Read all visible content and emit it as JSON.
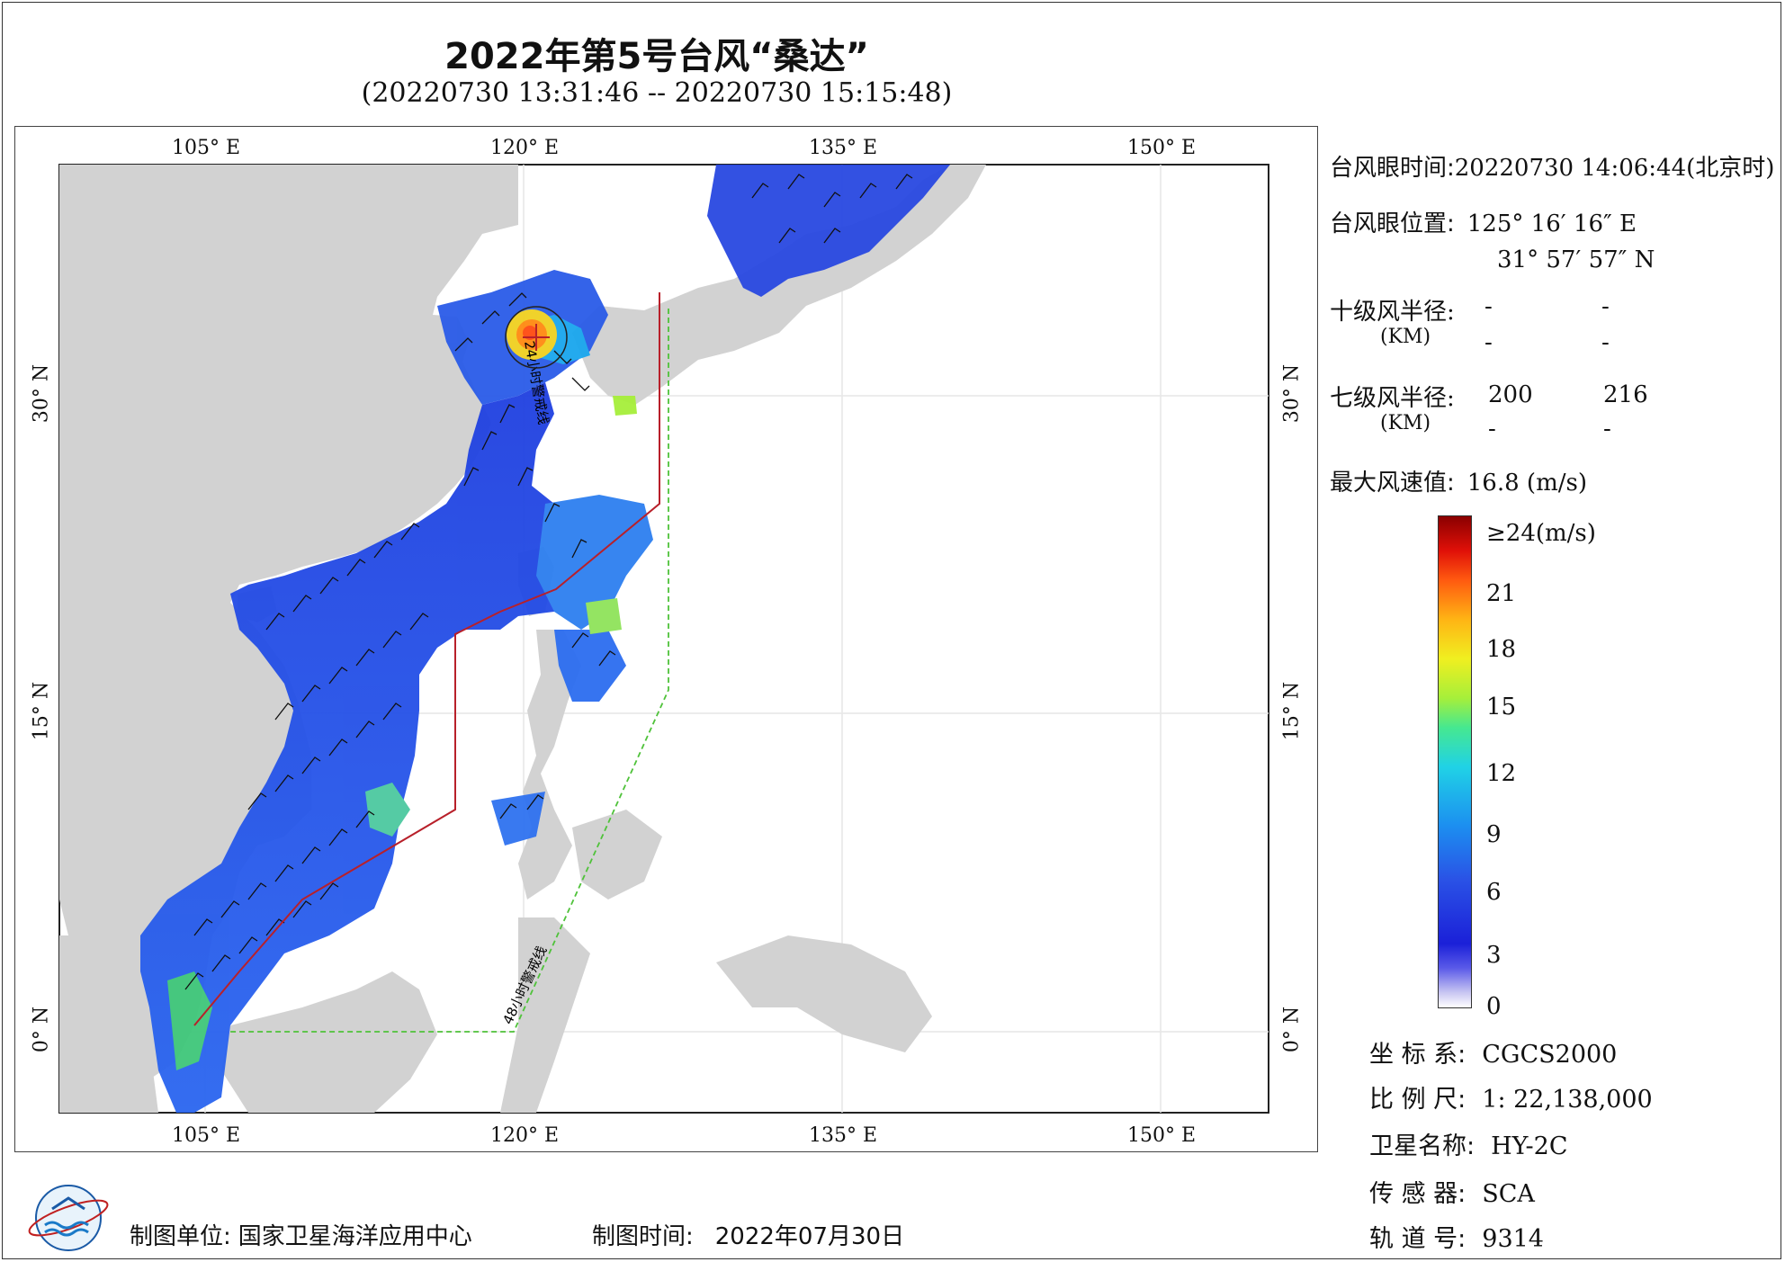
{
  "title": "2022年第5号台风“桑达”",
  "subtitle": "(20220730 13:31:46 -- 20220730 15:15:48)",
  "map": {
    "lon_ticks": [
      "105° E",
      "120° E",
      "135° E",
      "150° E"
    ],
    "lat_ticks": [
      "30° N",
      "15° N",
      "0° N"
    ],
    "warning_line_24h": "24小时警戒线",
    "warning_line_48h": "48小时警戒线",
    "colors": {
      "land": "#d2d2d2",
      "sea": "#ffffff",
      "line_24h": "#b8202a",
      "line_48h": "#4fc23a",
      "wind_barb": "#111111"
    }
  },
  "info": {
    "eye_time_label": "台风眼时间:",
    "eye_time_value": "20220730 14:06:44(北京时)",
    "eye_pos_label": "台风眼位置:",
    "eye_lon": "125° 16′ 16″ E",
    "eye_lat": "31° 57′ 57″ N",
    "r10_label": "十级风半径:",
    "r10_unit": "(KM)",
    "r10_values": [
      "-",
      "-",
      "-",
      "-"
    ],
    "r7_label": "七级风半径:",
    "r7_unit": "(KM)",
    "r7_values": [
      "200",
      "216",
      "-",
      "-"
    ],
    "max_wind_label": "最大风速值:",
    "max_wind_value": "16.8 (m/s)"
  },
  "legend": {
    "labels": [
      "≥24(m/s)",
      "21",
      "18",
      "15",
      "12",
      "9",
      "6",
      "3",
      "0"
    ]
  },
  "meta": {
    "coord_label": "坐 标 系:",
    "coord_value": "CGCS2000",
    "scale_label": "比 例 尺:",
    "scale_value": "1: 22,138,000",
    "sat_label": "卫星名称:",
    "sat_value": "HY-2C",
    "sensor_label": "传 感 器:",
    "sensor_value": "SCA",
    "orbit_label": "轨 道 号:",
    "orbit_value": "9314"
  },
  "footer": {
    "maker_label": "制图单位:",
    "maker_value": "国家卫星海洋应用中心",
    "date_label": "制图时间:",
    "date_value": "2022年07月30日"
  }
}
